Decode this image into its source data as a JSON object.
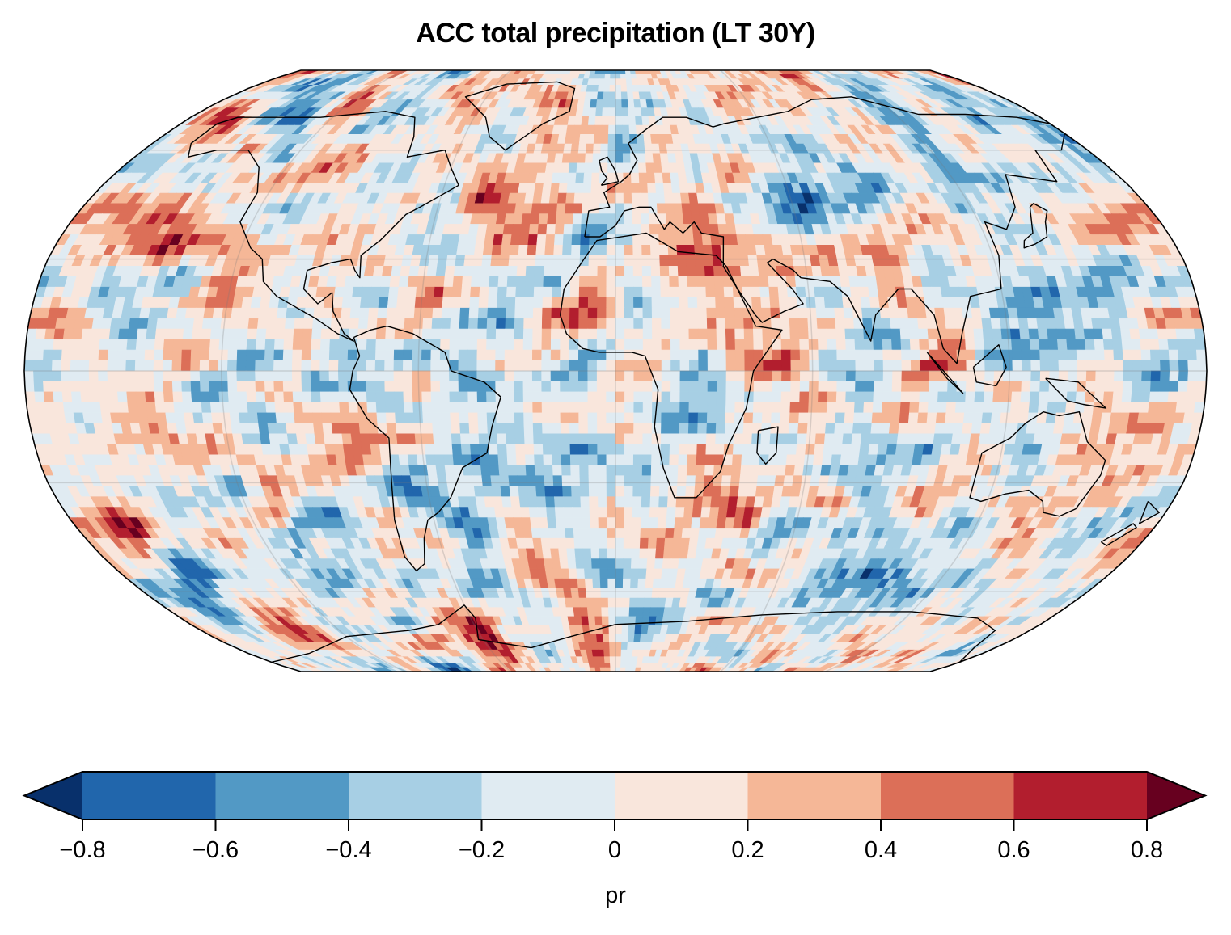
{
  "chart_data": {
    "type": "heatmap",
    "title": "ACC total precipitation (LT 30Y)",
    "projection": "Robinson",
    "variable": "pr",
    "colorbar": {
      "label": "pr",
      "levels": [
        -0.8,
        -0.6,
        -0.4,
        -0.2,
        0,
        0.2,
        0.4,
        0.6,
        0.8
      ],
      "tick_labels": [
        "−0.8",
        "−0.6",
        "−0.4",
        "−0.2",
        "0",
        "0.2",
        "0.4",
        "0.6",
        "0.8"
      ],
      "extend": "both",
      "colors": [
        "#2166ac",
        "#5299c5",
        "#a7cfe4",
        "#e0ebf2",
        "#f9e6dc",
        "#f5b797",
        "#dc6f58",
        "#b21e2e"
      ],
      "under_color": "#08306b",
      "over_color": "#67001f"
    },
    "value_range": [
      -0.8,
      0.8
    ],
    "grid": true,
    "coastlines": true
  }
}
